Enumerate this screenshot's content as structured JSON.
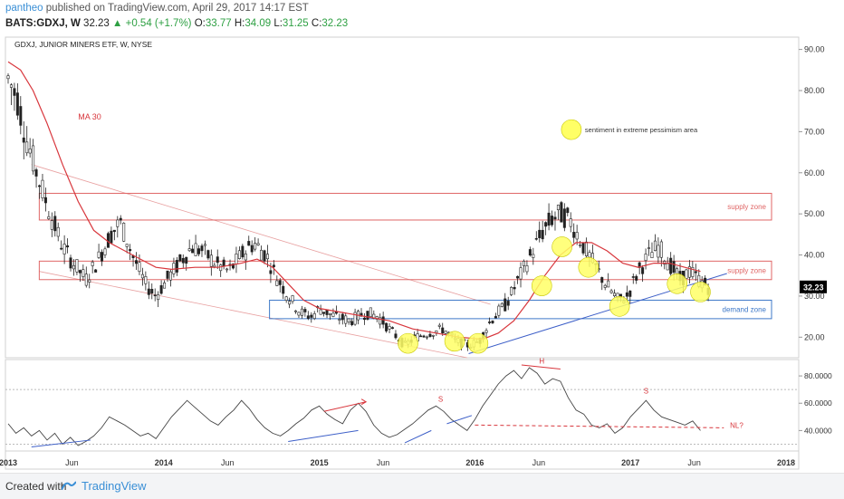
{
  "header": {
    "user": "pantheo",
    "published": "published on TradingView.com, April 29, 2017 14:17 EST",
    "symbol": "BATS:GDXJ, W",
    "last": "32.23",
    "change": "+0.54 (+1.7%)",
    "open_label": "O:",
    "open": "33.77",
    "high_label": "H:",
    "high": "34.09",
    "low_label": "L:",
    "low": "31.25",
    "close_label": "C:",
    "close": "32.23"
  },
  "footer": {
    "created_with": "Created with",
    "brand": "TradingView"
  },
  "chart_data": {
    "type": "candlestick",
    "title": "GDXJ, JUNIOR MINERS ETF, W, NYSE",
    "price_axis": {
      "ticks": [
        "90.00",
        "80.00",
        "70.00",
        "60.00",
        "50.00",
        "40.00",
        "30.00",
        "20.00"
      ],
      "ylim": [
        15,
        93
      ],
      "last_price_label": "32.23"
    },
    "time_axis": {
      "ticks": [
        "2013",
        "Jun",
        "2014",
        "Jun",
        "2015",
        "Jun",
        "2016",
        "Jun",
        "2017",
        "Jun",
        "2018"
      ]
    },
    "price_series": {
      "name": "GDXJ weekly",
      "points": [
        [
          2013.0,
          83
        ],
        [
          2013.06,
          78
        ],
        [
          2013.12,
          68
        ],
        [
          2013.2,
          58
        ],
        [
          2013.27,
          50
        ],
        [
          2013.35,
          42
        ],
        [
          2013.42,
          38
        ],
        [
          2013.5,
          34
        ],
        [
          2013.58,
          39
        ],
        [
          2013.66,
          45
        ],
        [
          2013.72,
          48
        ],
        [
          2013.8,
          40
        ],
        [
          2013.88,
          33
        ],
        [
          2013.95,
          30
        ],
        [
          2014.02,
          34
        ],
        [
          2014.1,
          38
        ],
        [
          2014.18,
          42
        ],
        [
          2014.25,
          41
        ],
        [
          2014.33,
          38
        ],
        [
          2014.42,
          36
        ],
        [
          2014.5,
          40
        ],
        [
          2014.58,
          43
        ],
        [
          2014.66,
          40
        ],
        [
          2014.72,
          35
        ],
        [
          2014.8,
          30
        ],
        [
          2014.88,
          26
        ],
        [
          2014.95,
          25
        ],
        [
          2015.0,
          27
        ],
        [
          2015.1,
          25
        ],
        [
          2015.2,
          24
        ],
        [
          2015.3,
          26
        ],
        [
          2015.38,
          25
        ],
        [
          2015.45,
          22
        ],
        [
          2015.55,
          18
        ],
        [
          2015.62,
          20
        ],
        [
          2015.7,
          21
        ],
        [
          2015.8,
          22
        ],
        [
          2015.88,
          19
        ],
        [
          2015.96,
          18
        ],
        [
          2016.03,
          19
        ],
        [
          2016.1,
          24
        ],
        [
          2016.2,
          28
        ],
        [
          2016.28,
          34
        ],
        [
          2016.36,
          40
        ],
        [
          2016.44,
          46
        ],
        [
          2016.5,
          49
        ],
        [
          2016.56,
          50
        ],
        [
          2016.62,
          48
        ],
        [
          2016.7,
          42
        ],
        [
          2016.76,
          38
        ],
        [
          2016.84,
          33
        ],
        [
          2016.92,
          29
        ],
        [
          2016.98,
          30
        ],
        [
          2017.05,
          36
        ],
        [
          2017.12,
          40
        ],
        [
          2017.18,
          42
        ],
        [
          2017.25,
          38
        ],
        [
          2017.32,
          34
        ],
        [
          2017.38,
          36
        ],
        [
          2017.44,
          34
        ],
        [
          2017.5,
          32.23
        ]
      ]
    },
    "ma_series": {
      "name": "MA 30",
      "points": [
        [
          2013.0,
          87
        ],
        [
          2013.08,
          85
        ],
        [
          2013.16,
          80
        ],
        [
          2013.25,
          72
        ],
        [
          2013.35,
          62
        ],
        [
          2013.45,
          53
        ],
        [
          2013.55,
          46
        ],
        [
          2013.65,
          43
        ],
        [
          2013.75,
          41
        ],
        [
          2013.85,
          39
        ],
        [
          2013.95,
          37
        ],
        [
          2014.05,
          36.5
        ],
        [
          2014.2,
          37
        ],
        [
          2014.35,
          37
        ],
        [
          2014.5,
          38
        ],
        [
          2014.6,
          39
        ],
        [
          2014.7,
          37
        ],
        [
          2014.8,
          33
        ],
        [
          2014.9,
          29
        ],
        [
          2015.0,
          27
        ],
        [
          2015.15,
          26
        ],
        [
          2015.3,
          25
        ],
        [
          2015.45,
          24
        ],
        [
          2015.6,
          22
        ],
        [
          2015.75,
          21
        ],
        [
          2015.9,
          20
        ],
        [
          2016.05,
          19.5
        ],
        [
          2016.15,
          21
        ],
        [
          2016.25,
          24
        ],
        [
          2016.35,
          29
        ],
        [
          2016.45,
          35
        ],
        [
          2016.55,
          40
        ],
        [
          2016.65,
          43
        ],
        [
          2016.75,
          43
        ],
        [
          2016.85,
          41
        ],
        [
          2016.95,
          38
        ],
        [
          2017.05,
          37
        ],
        [
          2017.15,
          38
        ],
        [
          2017.25,
          38
        ],
        [
          2017.35,
          37
        ],
        [
          2017.45,
          36
        ]
      ]
    },
    "zones": [
      {
        "label": "supply zone",
        "top": 55,
        "bottom": 48.5
      },
      {
        "label": "supply zone",
        "top": 38.5,
        "bottom": 34
      },
      {
        "label": "demand zone",
        "top": 29,
        "bottom": 24.5
      }
    ],
    "sentiment_markers": {
      "legend": "sentiment in extreme pessimism area",
      "points": [
        [
          2015.57,
          18.5
        ],
        [
          2015.87,
          19
        ],
        [
          2016.02,
          18.5
        ],
        [
          2016.43,
          32.5
        ],
        [
          2016.56,
          42
        ],
        [
          2016.73,
          37
        ],
        [
          2016.93,
          27.5
        ],
        [
          2017.3,
          33
        ],
        [
          2017.45,
          31
        ]
      ]
    },
    "oscillator": {
      "ticks": [
        "80.0000",
        "60.0000",
        "40.0000"
      ],
      "ylim": [
        25,
        92
      ],
      "levels": [
        70,
        30
      ],
      "points": [
        [
          2013.0,
          45
        ],
        [
          2013.05,
          38
        ],
        [
          2013.1,
          42
        ],
        [
          2013.15,
          36
        ],
        [
          2013.2,
          40
        ],
        [
          2013.25,
          33
        ],
        [
          2013.3,
          38
        ],
        [
          2013.35,
          30
        ],
        [
          2013.4,
          35
        ],
        [
          2013.45,
          29
        ],
        [
          2013.5,
          32
        ],
        [
          2013.55,
          36
        ],
        [
          2013.6,
          42
        ],
        [
          2013.65,
          50
        ],
        [
          2013.7,
          47
        ],
        [
          2013.75,
          44
        ],
        [
          2013.8,
          40
        ],
        [
          2013.85,
          36
        ],
        [
          2013.9,
          38
        ],
        [
          2013.95,
          34
        ],
        [
          2014.0,
          42
        ],
        [
          2014.05,
          50
        ],
        [
          2014.1,
          56
        ],
        [
          2014.15,
          62
        ],
        [
          2014.2,
          57
        ],
        [
          2014.25,
          52
        ],
        [
          2014.3,
          47
        ],
        [
          2014.35,
          44
        ],
        [
          2014.4,
          50
        ],
        [
          2014.45,
          55
        ],
        [
          2014.5,
          62
        ],
        [
          2014.55,
          56
        ],
        [
          2014.6,
          48
        ],
        [
          2014.65,
          42
        ],
        [
          2014.7,
          38
        ],
        [
          2014.75,
          36
        ],
        [
          2014.8,
          40
        ],
        [
          2014.85,
          45
        ],
        [
          2014.9,
          49
        ],
        [
          2014.95,
          55
        ],
        [
          2015.0,
          58
        ],
        [
          2015.05,
          52
        ],
        [
          2015.1,
          48
        ],
        [
          2015.15,
          45
        ],
        [
          2015.2,
          55
        ],
        [
          2015.25,
          60
        ],
        [
          2015.3,
          54
        ],
        [
          2015.35,
          44
        ],
        [
          2015.4,
          38
        ],
        [
          2015.45,
          35
        ],
        [
          2015.5,
          37
        ],
        [
          2015.55,
          41
        ],
        [
          2015.6,
          45
        ],
        [
          2015.65,
          50
        ],
        [
          2015.7,
          55
        ],
        [
          2015.75,
          58
        ],
        [
          2015.8,
          54
        ],
        [
          2015.85,
          48
        ],
        [
          2015.9,
          44
        ],
        [
          2015.95,
          40
        ],
        [
          2016.0,
          48
        ],
        [
          2016.05,
          58
        ],
        [
          2016.1,
          66
        ],
        [
          2016.15,
          74
        ],
        [
          2016.2,
          80
        ],
        [
          2016.25,
          84
        ],
        [
          2016.3,
          78
        ],
        [
          2016.35,
          86
        ],
        [
          2016.4,
          82
        ],
        [
          2016.45,
          74
        ],
        [
          2016.5,
          78
        ],
        [
          2016.55,
          76
        ],
        [
          2016.6,
          64
        ],
        [
          2016.65,
          55
        ],
        [
          2016.7,
          52
        ],
        [
          2016.75,
          44
        ],
        [
          2016.8,
          42
        ],
        [
          2016.85,
          45
        ],
        [
          2016.9,
          38
        ],
        [
          2016.95,
          42
        ],
        [
          2017.0,
          50
        ],
        [
          2017.05,
          56
        ],
        [
          2017.1,
          62
        ],
        [
          2017.15,
          55
        ],
        [
          2017.2,
          50
        ],
        [
          2017.25,
          48
        ],
        [
          2017.3,
          46
        ],
        [
          2017.35,
          44
        ],
        [
          2017.4,
          47
        ],
        [
          2017.45,
          40
        ]
      ]
    },
    "annotations": {
      "ma_label": "MA 30",
      "h_label": "H",
      "s1_label": "S",
      "s2_label": "S",
      "nl_label": "NL?"
    },
    "colors": {
      "candle": "#222222",
      "ma": "#d8363c",
      "supply": "#e06666",
      "demand": "#3d78c8",
      "trendline": "#3d5fc8",
      "divergence_red": "#d8363c",
      "marker": "#ffff66",
      "price_tag": "#000000"
    }
  }
}
